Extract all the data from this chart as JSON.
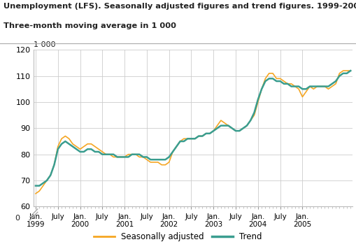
{
  "title_line1": "Unemployment (LFS). Seasonally adjusted figures and trend figures. 1999-2005.",
  "title_line2": "Three-month moving average in 1 000",
  "ylabel_top": "1 000",
  "ylim": [
    60,
    120
  ],
  "y0_label": "0",
  "yticks": [
    60,
    70,
    80,
    90,
    100,
    110,
    120
  ],
  "color_sa": "#f5a623",
  "color_trend": "#3a9d8f",
  "bg_color": "#ffffff",
  "grid_color": "#cccccc",
  "seasonally_adjusted": [
    65,
    66,
    68,
    70,
    72,
    76,
    83,
    86,
    87,
    86,
    84,
    83,
    82,
    83,
    84,
    84,
    83,
    82,
    81,
    80,
    80,
    79,
    79,
    79,
    79,
    80,
    80,
    80,
    79,
    79,
    78,
    77,
    77,
    77,
    76,
    76,
    77,
    81,
    83,
    85,
    86,
    86,
    86,
    86,
    87,
    87,
    88,
    88,
    89,
    91,
    93,
    92,
    91,
    90,
    89,
    89,
    90,
    91,
    93,
    95,
    100,
    105,
    109,
    111,
    111,
    109,
    109,
    108,
    107,
    107,
    106,
    105,
    102,
    104,
    106,
    105,
    106,
    106,
    106,
    105,
    106,
    107,
    111,
    112,
    112,
    112
  ],
  "trend": [
    68,
    68,
    69,
    70,
    72,
    76,
    82,
    84,
    85,
    84,
    83,
    82,
    81,
    81,
    82,
    82,
    81,
    81,
    80,
    80,
    80,
    80,
    79,
    79,
    79,
    79,
    80,
    80,
    80,
    79,
    79,
    78,
    78,
    78,
    78,
    78,
    79,
    81,
    83,
    85,
    85,
    86,
    86,
    86,
    87,
    87,
    88,
    88,
    89,
    90,
    91,
    91,
    91,
    90,
    89,
    89,
    90,
    91,
    93,
    96,
    101,
    105,
    108,
    109,
    109,
    108,
    108,
    107,
    107,
    106,
    106,
    106,
    105,
    105,
    106,
    106,
    106,
    106,
    106,
    106,
    107,
    108,
    110,
    111,
    111,
    112
  ],
  "x_tick_labels": [
    "Jan.\n1999",
    "July",
    "Jan.\n2000",
    "July",
    "Jan.\n2001",
    "July",
    "Jan.\n2002",
    "July",
    "Jan.\n2003",
    "July",
    "Jan.\n2004",
    "July",
    "Jan.\n2005"
  ],
  "x_tick_positions": [
    0,
    6,
    12,
    18,
    24,
    30,
    36,
    42,
    48,
    54,
    60,
    66,
    72
  ],
  "legend_labels": [
    "Seasonally adjusted",
    "Trend"
  ],
  "n_points": 86
}
